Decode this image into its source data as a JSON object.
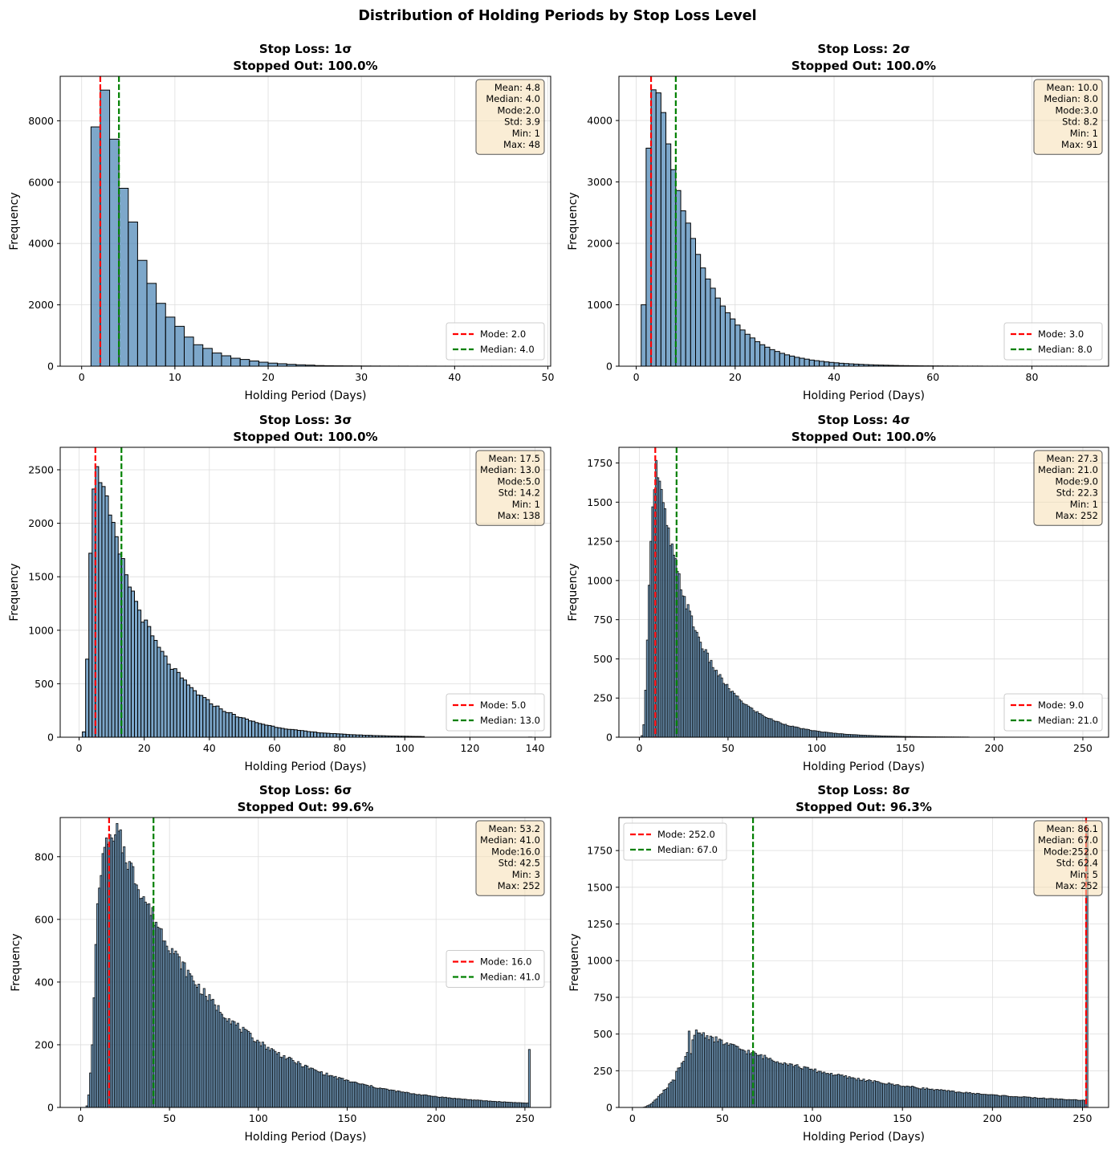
{
  "figure_title": "Distribution of Holding Periods by Stop Loss Level",
  "colors": {
    "bar_fill": "#4682b4",
    "bar_edge": "#000000",
    "mode_line": "#ff0000",
    "median_line": "#008000",
    "stats_box": "#f5deb3",
    "grid": "#dddddd"
  },
  "chart_data": [
    {
      "type": "bar",
      "title_line1": "Stop Loss: 1σ",
      "title_line2": "Stopped Out: 100.0%",
      "xlabel": "Holding Period (Days)",
      "ylabel": "Frequency",
      "xlim": [
        -2.3,
        50.3
      ],
      "ylim": [
        0,
        9450
      ],
      "xticks": [
        0,
        10,
        20,
        30,
        40,
        50
      ],
      "yticks": [
        0,
        2000,
        4000,
        6000,
        8000
      ],
      "bin_start": 1,
      "bin_width": 1,
      "values": [
        7800,
        9000,
        7400,
        5800,
        4700,
        3450,
        2700,
        2050,
        1600,
        1300,
        950,
        700,
        580,
        430,
        340,
        260,
        220,
        170,
        130,
        100,
        80,
        60,
        45,
        35,
        20,
        15,
        12,
        10,
        8,
        6,
        5,
        4,
        3,
        3,
        2,
        2,
        2,
        1,
        1,
        1,
        1,
        1,
        1,
        1,
        1,
        1,
        1
      ],
      "mode": 2.0,
      "median": 4.0,
      "legend_mode": "Mode: 2.0",
      "legend_median": "Median: 4.0",
      "legend_loc": "lower-right",
      "stats": [
        "Mean: 4.8",
        "Median: 4.0",
        "Mode:2.0",
        "Std: 3.9",
        "Min: 1",
        "Max: 48"
      ]
    },
    {
      "type": "bar",
      "title_line1": "Stop Loss: 2σ",
      "title_line2": "Stopped Out: 100.0%",
      "xlabel": "Holding Period (Days)",
      "ylabel": "Frequency",
      "xlim": [
        -3.5,
        95.5
      ],
      "ylim": [
        0,
        4720
      ],
      "xticks": [
        0,
        20,
        40,
        60,
        80
      ],
      "yticks": [
        0,
        1000,
        2000,
        3000,
        4000
      ],
      "bin_start": 1,
      "bin_width": 1,
      "values": [
        1000,
        3550,
        4500,
        4450,
        4130,
        3620,
        3200,
        2860,
        2530,
        2330,
        2080,
        1820,
        1600,
        1420,
        1270,
        1110,
        980,
        870,
        770,
        670,
        590,
        520,
        460,
        400,
        350,
        310,
        270,
        240,
        210,
        185,
        165,
        145,
        130,
        115,
        100,
        90,
        80,
        70,
        62,
        55,
        48,
        43,
        38,
        34,
        30,
        26,
        23,
        20,
        18,
        16,
        14,
        12,
        10,
        9,
        8,
        7,
        6,
        5,
        5,
        4,
        4,
        3,
        3,
        3,
        2,
        2,
        2,
        2,
        2,
        1,
        1,
        1,
        1,
        1,
        1,
        1,
        1,
        1,
        1,
        1,
        1,
        1,
        1,
        1,
        1,
        1,
        1,
        1,
        1,
        1
      ],
      "mode": 3.0,
      "median": 8.0,
      "legend_mode": "Mode: 3.0",
      "legend_median": "Median: 8.0",
      "legend_loc": "lower-right",
      "stats": [
        "Mean: 10.0",
        "Median: 8.0",
        "Mode:3.0",
        "Std: 8.2",
        "Min: 1",
        "Max: 91"
      ]
    },
    {
      "type": "bar",
      "title_line1": "Stop Loss: 3σ",
      "title_line2": "Stopped Out: 100.0%",
      "xlabel": "Holding Period (Days)",
      "ylabel": "Frequency",
      "xlim": [
        -5.8,
        144.8
      ],
      "ylim": [
        0,
        2710
      ],
      "xticks": [
        0,
        20,
        40,
        60,
        80,
        100,
        120,
        140
      ],
      "yticks": [
        0,
        500,
        1000,
        1500,
        2000,
        2500
      ],
      "bin_start": 1,
      "bin_width": 1,
      "peak_index": 5,
      "peak_value": 2600,
      "start_values": [
        50,
        730,
        1720,
        2320
      ],
      "decay_rate": 0.06,
      "mode": 5.0,
      "median": 13.0,
      "legend_mode": "Mode: 5.0",
      "legend_median": "Median: 13.0",
      "legend_loc": "lower-right",
      "stats": [
        "Mean: 17.5",
        "Median: 13.0",
        "Mode:5.0",
        "Std: 14.2",
        "Min: 1",
        "Max: 138"
      ]
    },
    {
      "type": "bar",
      "title_line1": "Stop Loss: 4σ",
      "title_line2": "Stopped Out: 100.0%",
      "xlabel": "Holding Period (Days)",
      "ylabel": "Frequency",
      "xlim": [
        -11.5,
        264.5
      ],
      "ylim": [
        0,
        1850
      ],
      "xticks": [
        0,
        50,
        100,
        150,
        200,
        250
      ],
      "yticks": [
        0,
        250,
        500,
        750,
        1000,
        1250,
        1500,
        1750
      ],
      "bin_start": 1,
      "bin_width": 1,
      "peak_index": 9,
      "peak_value": 1740,
      "start_values": [
        10,
        80,
        300,
        620,
        970,
        1250,
        1470,
        1580
      ],
      "decay_rate": 0.042,
      "mode": 9.0,
      "median": 21.0,
      "legend_mode": "Mode: 9.0",
      "legend_median": "Median: 21.0",
      "legend_loc": "lower-right",
      "stats": [
        "Mean: 27.3",
        "Median: 21.0",
        "Mode:9.0",
        "Std: 22.3",
        "Min: 1",
        "Max: 252"
      ]
    },
    {
      "type": "bar",
      "title_line1": "Stop Loss: 6σ",
      "title_line2": "Stopped Out: 99.6%",
      "xlabel": "Holding Period (Days)",
      "ylabel": "Frequency",
      "xlim": [
        -11.5,
        264.5
      ],
      "ylim": [
        0,
        925
      ],
      "xticks": [
        0,
        50,
        100,
        150,
        200,
        250
      ],
      "yticks": [
        0,
        200,
        400,
        600,
        800
      ],
      "bin_start": 3,
      "bin_width": 1,
      "peak_index": 20,
      "peak_value": 880,
      "start_values": [
        5,
        40,
        110,
        200,
        350,
        520,
        650,
        700,
        740,
        810,
        830,
        860,
        840,
        870,
        860,
        850,
        870
      ],
      "decay_rate": 0.018,
      "spike_x": 252,
      "spike_value": 185,
      "mode": 16.0,
      "median": 41.0,
      "legend_mode": "Mode: 16.0",
      "legend_median": "Median: 41.0",
      "legend_loc": "center-right",
      "stats": [
        "Mean: 53.2",
        "Median: 41.0",
        "Mode:16.0",
        "Std: 42.5",
        "Min: 3",
        "Max: 252"
      ]
    },
    {
      "type": "bar",
      "title_line1": "Stop Loss: 8σ",
      "title_line2": "Stopped Out: 96.3%",
      "xlabel": "Holding Period (Days)",
      "ylabel": "Frequency",
      "xlim": [
        -7.5,
        264.5
      ],
      "ylim": [
        0,
        1975
      ],
      "xticks": [
        0,
        50,
        100,
        150,
        200,
        250
      ],
      "yticks": [
        0,
        250,
        500,
        750,
        1000,
        1250,
        1500,
        1750
      ],
      "bin_start": 5,
      "bin_width": 1,
      "peak_index": 30,
      "peak_value": 520,
      "rise_start": 5,
      "decay_rate": 0.011,
      "spike_x": 252,
      "spike_value": 1880,
      "mode": 252.0,
      "median": 67.0,
      "legend_mode": "Mode: 252.0",
      "legend_median": "Median: 67.0",
      "legend_loc": "upper-left",
      "stats": [
        "Mean: 86.1",
        "Median: 67.0",
        "Mode:252.0",
        "Std: 62.4",
        "Min: 5",
        "Max: 252"
      ]
    }
  ]
}
